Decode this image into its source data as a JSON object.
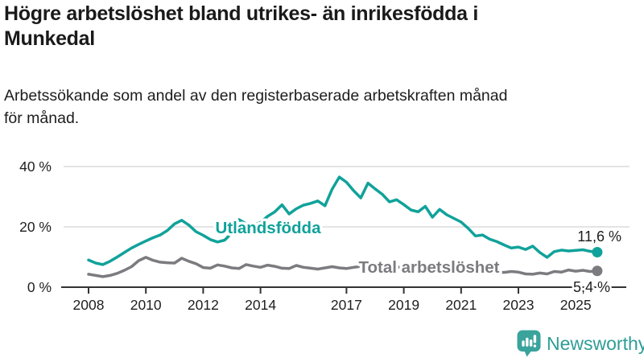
{
  "header": {
    "title_lines": [
      "Högre arbetslöshet bland utrikes- än inrikesfödda i",
      "Munkedal"
    ],
    "subtitle_lines": [
      "Arbetssökande som andel av den registerbaserade arbetskraften månad",
      "för månad."
    ]
  },
  "chart_data": {
    "type": "line",
    "title": "Högre arbetslöshet bland utrikes- än inrikesfödda i Munkedal",
    "subtitle": "Arbetssökande som andel av den registerbaserade arbetskraften månad för månad.",
    "xlabel": "",
    "ylabel": "",
    "ylim": [
      0,
      42
    ],
    "xlim": [
      2007.7,
      2026.3
    ],
    "grid": "horizontal",
    "y_ticks": [
      {
        "value": 0,
        "label": "0 %"
      },
      {
        "value": 20,
        "label": "20 %"
      },
      {
        "value": 40,
        "label": "40 %"
      }
    ],
    "x_ticks": [
      {
        "value": 2008,
        "label": "2008"
      },
      {
        "value": 2010,
        "label": "2010"
      },
      {
        "value": 2012,
        "label": "2012"
      },
      {
        "value": 2014,
        "label": "2014"
      },
      {
        "value": 2017,
        "label": "2017"
      },
      {
        "value": 2019,
        "label": "2019"
      },
      {
        "value": 2021,
        "label": "2021"
      },
      {
        "value": 2023,
        "label": "2023"
      },
      {
        "value": 2025,
        "label": "2025"
      }
    ],
    "x": [
      2008,
      2008.25,
      2008.5,
      2008.75,
      2009,
      2009.25,
      2009.5,
      2009.75,
      2010,
      2010.25,
      2010.5,
      2010.75,
      2011,
      2011.25,
      2011.5,
      2011.75,
      2012,
      2012.25,
      2012.5,
      2012.75,
      2013,
      2013.25,
      2013.5,
      2013.75,
      2014,
      2014.25,
      2014.5,
      2014.75,
      2015,
      2015.25,
      2015.5,
      2015.75,
      2016,
      2016.25,
      2016.5,
      2016.75,
      2017,
      2017.25,
      2017.5,
      2017.75,
      2018,
      2018.25,
      2018.5,
      2018.75,
      2019,
      2019.25,
      2019.5,
      2019.75,
      2020,
      2020.25,
      2020.5,
      2020.75,
      2021,
      2021.25,
      2021.5,
      2021.75,
      2022,
      2022.25,
      2022.5,
      2022.75,
      2023,
      2023.25,
      2023.5,
      2023.75,
      2024,
      2024.25,
      2024.5,
      2024.75,
      2025,
      2025.25,
      2025.5,
      2025.75
    ],
    "series": [
      {
        "name": "Utlandsfödda",
        "color": "#10a29a",
        "end_label": "11,6 %",
        "end_value": 11.6,
        "values": [
          9.0,
          8.0,
          7.5,
          8.6,
          10.0,
          11.5,
          13.0,
          14.2,
          15.3,
          16.4,
          17.3,
          18.8,
          21.0,
          22.2,
          20.6,
          18.4,
          17.2,
          15.8,
          15.0,
          15.6,
          18.0,
          22.4,
          21.0,
          20.4,
          21.5,
          23.5,
          25.0,
          27.3,
          24.3,
          26.0,
          27.2,
          27.8,
          28.6,
          27.0,
          32.5,
          36.5,
          34.8,
          32.0,
          29.6,
          34.5,
          32.6,
          30.8,
          28.3,
          29.0,
          27.4,
          25.6,
          25.0,
          26.8,
          23.2,
          25.8,
          24.0,
          22.8,
          21.6,
          19.5,
          17.0,
          17.3,
          15.9,
          15.1,
          14.0,
          13.0,
          13.3,
          12.5,
          13.6,
          11.5,
          9.9,
          11.8,
          12.3,
          12.0,
          12.2,
          12.4,
          11.9,
          11.6
        ]
      },
      {
        "name": "Total arbetslöshet",
        "color": "#7b7b80",
        "end_label": "5,4 %",
        "end_value": 5.4,
        "values": [
          4.3,
          3.9,
          3.5,
          3.9,
          4.6,
          5.6,
          6.8,
          8.8,
          9.9,
          8.9,
          8.3,
          8.1,
          8.0,
          9.6,
          8.6,
          7.8,
          6.5,
          6.3,
          7.4,
          7.0,
          6.4,
          6.2,
          7.5,
          7.0,
          6.6,
          7.3,
          6.9,
          6.3,
          6.2,
          7.2,
          6.6,
          6.3,
          6.0,
          6.4,
          6.8,
          6.4,
          6.2,
          6.6,
          6.9,
          6.4,
          6.2,
          6.8,
          7.4,
          6.8,
          6.3,
          6.0,
          5.8,
          6.1,
          6.4,
          7.9,
          7.6,
          7.2,
          6.9,
          6.4,
          6.0,
          5.6,
          5.3,
          5.0,
          4.9,
          5.2,
          5.0,
          4.4,
          4.3,
          4.7,
          4.4,
          5.2,
          5.0,
          5.7,
          5.3,
          5.6,
          5.2,
          5.4
        ]
      }
    ],
    "legend_position": "inline-labels",
    "colors": {
      "grid": "#dbdbdb",
      "axis": "#333333",
      "text": "#1f1f1f",
      "accent_teal": "#10a29a",
      "accent_gray": "#7b7b80"
    }
  },
  "footer": {
    "brand": "Newsworthy",
    "icon": "newsworthy-bar-chart-bubble-icon",
    "brand_color": "#2e9d96"
  }
}
